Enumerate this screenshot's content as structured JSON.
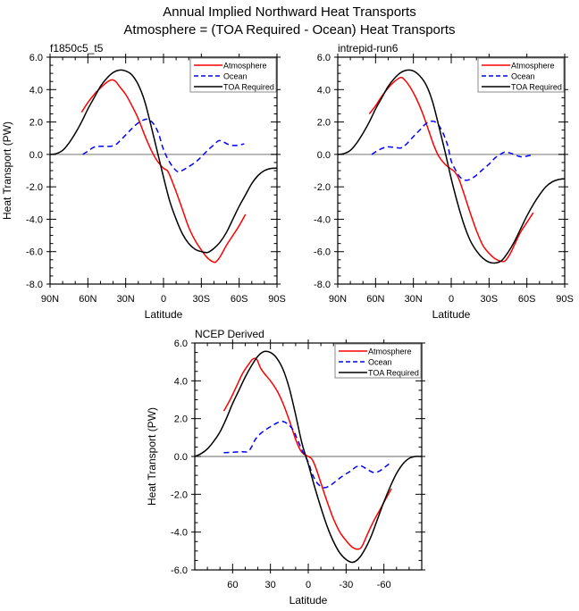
{
  "figure": {
    "title": "Annual Implied Northward Heat Transports",
    "subtitle": "Atmosphere = (TOA Required - Ocean) Heat Transports"
  },
  "colors": {
    "atmosphere": "#ff0000",
    "ocean": "#0000ff",
    "toa": "#000000",
    "zero_line_top": "#aaaaaa",
    "zero_line_bottom": "#666666"
  },
  "chart_data": [
    {
      "type": "line",
      "panel_title": "f1850c5_t5",
      "xlabel": "Latitude",
      "ylabel": "Heat Transport (PW)",
      "xlim": [
        90,
        -90
      ],
      "ylim": [
        -8,
        6
      ],
      "xticks": [
        90,
        60,
        30,
        0,
        -30,
        -60,
        -90
      ],
      "xtick_labels": [
        "90N",
        "60N",
        "30N",
        "0",
        "30S",
        "60S",
        "90S"
      ],
      "yticks": [
        6,
        4,
        2,
        0,
        -2,
        -4,
        -6,
        -8
      ],
      "ytick_labels": [
        "6.0",
        "4.0",
        "2.0",
        "0.0",
        "-2.0",
        "-4.0",
        "-6.0",
        "-8.0"
      ],
      "legend_position": "top-right",
      "series": [
        {
          "name": "Atmosphere",
          "style": "solid",
          "color": "#ff0000",
          "x": [
            65,
            60,
            55,
            50,
            45,
            41,
            38,
            35,
            30,
            25,
            20,
            15,
            10,
            5,
            0,
            -3,
            -5,
            -10,
            -15,
            -20,
            -25,
            -30,
            -35,
            -40,
            -42,
            -45,
            -50,
            -55,
            -60,
            -65
          ],
          "y": [
            2.6,
            3.2,
            3.7,
            4.1,
            4.45,
            4.6,
            4.5,
            4.2,
            3.7,
            3.0,
            2.2,
            1.2,
            0.3,
            -0.4,
            -0.85,
            -1.0,
            -1.3,
            -2.3,
            -3.4,
            -4.5,
            -5.3,
            -5.9,
            -6.4,
            -6.65,
            -6.6,
            -6.3,
            -5.6,
            -5.0,
            -4.4,
            -3.7
          ]
        },
        {
          "name": "Ocean",
          "style": "dashed",
          "color": "#0000ff",
          "x": [
            64,
            60,
            55,
            50,
            42,
            38,
            35,
            30,
            25,
            20,
            15,
            12,
            8,
            4,
            0,
            -5,
            -10,
            -13,
            -18,
            -25,
            -30,
            -35,
            -40,
            -44,
            -48,
            -52,
            -57,
            -64
          ],
          "y": [
            0,
            0.2,
            0.45,
            0.5,
            0.5,
            0.6,
            0.8,
            1.2,
            1.6,
            1.95,
            2.15,
            2.15,
            1.9,
            1.3,
            0.3,
            -0.5,
            -1.0,
            -1.05,
            -0.85,
            -0.5,
            -0.15,
            0.25,
            0.6,
            0.85,
            0.75,
            0.6,
            0.55,
            0.65
          ]
        },
        {
          "name": "TOA Required",
          "style": "solid",
          "color": "#000000",
          "x": [
            90,
            85,
            80,
            75,
            70,
            65,
            60,
            55,
            50,
            45,
            40,
            35,
            30,
            25,
            20,
            15,
            10,
            5,
            0,
            -5,
            -10,
            -15,
            -20,
            -25,
            -30,
            -35,
            -40,
            -45,
            -50,
            -55,
            -60,
            -65,
            -70,
            -75,
            -80,
            -85,
            -90
          ],
          "y": [
            0,
            0.05,
            0.25,
            0.7,
            1.3,
            2.0,
            2.8,
            3.5,
            4.2,
            4.7,
            5.05,
            5.2,
            5.15,
            4.9,
            4.3,
            3.3,
            1.8,
            0.2,
            -1.4,
            -2.9,
            -4.0,
            -4.9,
            -5.5,
            -5.85,
            -6.0,
            -6.05,
            -5.8,
            -5.4,
            -4.8,
            -4.0,
            -3.2,
            -2.5,
            -1.8,
            -1.3,
            -1.0,
            -0.87,
            -0.85
          ]
        }
      ]
    },
    {
      "type": "line",
      "panel_title": "intrepid-run6",
      "xlabel": "Latitude",
      "ylabel": "",
      "xlim": [
        90,
        -90
      ],
      "ylim": [
        -8,
        6
      ],
      "xticks": [
        90,
        60,
        30,
        0,
        -30,
        -60,
        -90
      ],
      "xtick_labels": [
        "90N",
        "60N",
        "30N",
        "0",
        "30S",
        "60S",
        "90S"
      ],
      "yticks": [
        6,
        4,
        2,
        0,
        -2,
        -4,
        -6,
        -8
      ],
      "ytick_labels": [
        "6.0",
        "4.0",
        "2.0",
        "0.0",
        "-2.0",
        "-4.0",
        "-6.0",
        "-8.0"
      ],
      "legend_position": "top-right",
      "series": [
        {
          "name": "Atmosphere",
          "style": "solid",
          "color": "#ff0000",
          "x": [
            65,
            60,
            55,
            50,
            45,
            40,
            37,
            33,
            28,
            23,
            18,
            14,
            10,
            5,
            1,
            -3,
            -6,
            -10,
            -15,
            -20,
            -25,
            -30,
            -35,
            -40,
            -43,
            -47,
            -50,
            -55,
            -60,
            -65
          ],
          "y": [
            2.5,
            3.0,
            3.6,
            4.1,
            4.5,
            4.75,
            4.6,
            4.2,
            3.5,
            2.6,
            1.5,
            0.6,
            -0.1,
            -0.6,
            -0.85,
            -1.1,
            -1.5,
            -2.4,
            -3.6,
            -4.7,
            -5.6,
            -6.1,
            -6.45,
            -6.6,
            -6.55,
            -6.1,
            -5.6,
            -4.8,
            -4.2,
            -3.6
          ]
        },
        {
          "name": "Ocean",
          "style": "dashed",
          "color": "#0000ff",
          "x": [
            63,
            58,
            52,
            47,
            40,
            36,
            30,
            25,
            20,
            15,
            11,
            7,
            3,
            0,
            -3,
            -7,
            -12,
            -18,
            -24,
            -30,
            -35,
            -40,
            -43,
            -48,
            -53,
            -57,
            -63
          ],
          "y": [
            0,
            0.25,
            0.45,
            0.45,
            0.4,
            0.6,
            1.1,
            1.5,
            1.9,
            2.05,
            1.9,
            1.4,
            0.6,
            -0.4,
            -0.9,
            -1.4,
            -1.6,
            -1.4,
            -1.0,
            -0.6,
            -0.2,
            0.05,
            0.15,
            0.05,
            -0.1,
            -0.15,
            -0.05
          ]
        },
        {
          "name": "TOA Required",
          "style": "solid",
          "color": "#000000",
          "x": [
            90,
            85,
            80,
            75,
            70,
            65,
            60,
            55,
            50,
            45,
            40,
            35,
            30,
            25,
            20,
            15,
            10,
            5,
            0,
            -5,
            -10,
            -15,
            -20,
            -25,
            -30,
            -35,
            -40,
            -45,
            -50,
            -55,
            -60,
            -65,
            -70,
            -75,
            -80,
            -85,
            -90
          ],
          "y": [
            0,
            0.05,
            0.25,
            0.7,
            1.3,
            2.0,
            2.8,
            3.5,
            4.2,
            4.7,
            5.05,
            5.2,
            5.15,
            4.85,
            4.3,
            3.3,
            1.8,
            0.2,
            -1.5,
            -3.0,
            -4.3,
            -5.3,
            -5.95,
            -6.4,
            -6.65,
            -6.7,
            -6.55,
            -6.05,
            -5.4,
            -4.6,
            -3.8,
            -3.1,
            -2.5,
            -2.0,
            -1.7,
            -1.55,
            -1.5
          ]
        }
      ]
    },
    {
      "type": "line",
      "panel_title": "NCEP Derived",
      "xlabel": "Latitude",
      "ylabel": "Heat Transport (PW)",
      "xlim": [
        90,
        -90
      ],
      "ylim": [
        -6,
        6
      ],
      "xticks": [
        60,
        30,
        0,
        -30,
        -60
      ],
      "xtick_labels": [
        "60",
        "30",
        "0",
        "-30",
        "-60"
      ],
      "yticks": [
        6,
        4,
        2,
        0,
        -2,
        -4,
        -6
      ],
      "ytick_labels": [
        "6.0",
        "4.0",
        "2.0",
        "0.0",
        "-2.0",
        "-4.0",
        "-6.0"
      ],
      "legend_position": "top-right",
      "series": [
        {
          "name": "Atmosphere",
          "style": "solid",
          "color": "#ff0000",
          "x": [
            67,
            62,
            57,
            52,
            47,
            44,
            41,
            38,
            35,
            30,
            25,
            20,
            15,
            10,
            6,
            3,
            0,
            -3,
            -6,
            -10,
            -15,
            -20,
            -25,
            -30,
            -35,
            -40,
            -43,
            -47,
            -52,
            -57,
            -61,
            -66
          ],
          "y": [
            2.4,
            3.0,
            3.7,
            4.4,
            4.9,
            5.15,
            5.15,
            4.7,
            4.4,
            4.0,
            3.5,
            2.8,
            1.9,
            0.9,
            0.3,
            0.1,
            0.0,
            -0.15,
            -0.6,
            -1.4,
            -2.4,
            -3.3,
            -4.0,
            -4.45,
            -4.8,
            -4.9,
            -4.7,
            -4.1,
            -3.4,
            -2.8,
            -2.3,
            -1.7
          ]
        },
        {
          "name": "Ocean",
          "style": "dashed",
          "color": "#0000ff",
          "x": [
            67,
            60,
            53,
            48,
            45,
            42,
            38,
            33,
            28,
            24,
            20,
            16,
            12,
            8,
            4,
            0,
            -3,
            -7,
            -12,
            -17,
            -22,
            -28,
            -33,
            -38,
            -42,
            -46,
            -52,
            -57,
            -62,
            -66
          ],
          "y": [
            0.2,
            0.22,
            0.25,
            0.25,
            0.5,
            0.9,
            1.2,
            1.45,
            1.65,
            1.8,
            1.85,
            1.7,
            1.4,
            0.8,
            0.2,
            -0.3,
            -0.9,
            -1.4,
            -1.65,
            -1.55,
            -1.3,
            -1.0,
            -0.8,
            -0.55,
            -0.5,
            -0.65,
            -0.85,
            -0.75,
            -0.5,
            -0.3
          ]
        },
        {
          "name": "TOA Required",
          "style": "solid",
          "color": "#000000",
          "x": [
            90,
            85,
            80,
            75,
            70,
            65,
            60,
            55,
            50,
            45,
            40,
            35,
            30,
            25,
            20,
            15,
            10,
            5,
            0,
            -5,
            -10,
            -15,
            -20,
            -25,
            -30,
            -35,
            -40,
            -45,
            -50,
            -55,
            -60,
            -65,
            -70,
            -75,
            -80,
            -85,
            -90
          ],
          "y": [
            0,
            0.15,
            0.4,
            0.8,
            1.3,
            2.0,
            2.8,
            3.5,
            4.2,
            4.8,
            5.3,
            5.55,
            5.5,
            5.2,
            4.6,
            3.6,
            2.2,
            0.7,
            -0.4,
            -1.6,
            -2.7,
            -3.7,
            -4.5,
            -5.1,
            -5.45,
            -5.6,
            -5.4,
            -4.9,
            -4.2,
            -3.3,
            -2.4,
            -1.6,
            -0.9,
            -0.4,
            -0.1,
            0.0,
            0.0
          ]
        }
      ]
    }
  ]
}
